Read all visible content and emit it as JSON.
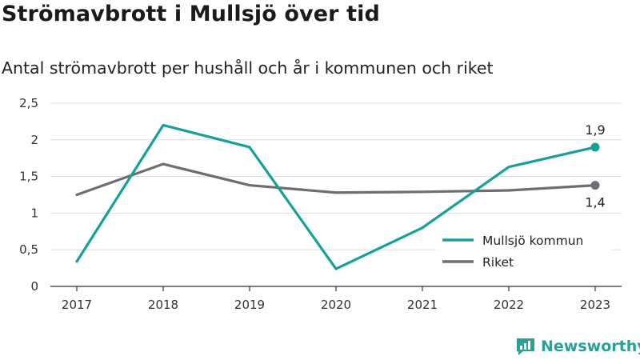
{
  "header": {
    "title": "Strömavbrott i Mullsjö över tid",
    "subtitle": "Antal strömavbrott per hushåll och år i kommunen och riket"
  },
  "brand": {
    "name": "Newsworthy",
    "color": "#2aa198"
  },
  "chart_data": {
    "type": "line",
    "title": "Strömavbrott i Mullsjö över tid",
    "subtitle": "Antal strömavbrott per hushåll och år i kommunen och riket",
    "x": [
      "2017",
      "2018",
      "2019",
      "2020",
      "2021",
      "2022",
      "2023"
    ],
    "ylim": [
      0,
      2.5
    ],
    "y_ticks": [
      "0",
      "0,5",
      "1",
      "1,5",
      "2",
      "2,5"
    ],
    "grid": true,
    "legend_position": "bottom-right",
    "series": [
      {
        "name": "Mullsjö kommun",
        "color": "#16a196",
        "values": [
          0.34,
          2.2,
          1.9,
          0.24,
          0.8,
          1.63,
          1.9
        ],
        "end_label": "1,9"
      },
      {
        "name": "Riket",
        "color": "#6e6d73",
        "values": [
          1.25,
          1.67,
          1.38,
          1.28,
          1.29,
          1.31,
          1.38
        ],
        "end_label": "1,4"
      }
    ]
  }
}
